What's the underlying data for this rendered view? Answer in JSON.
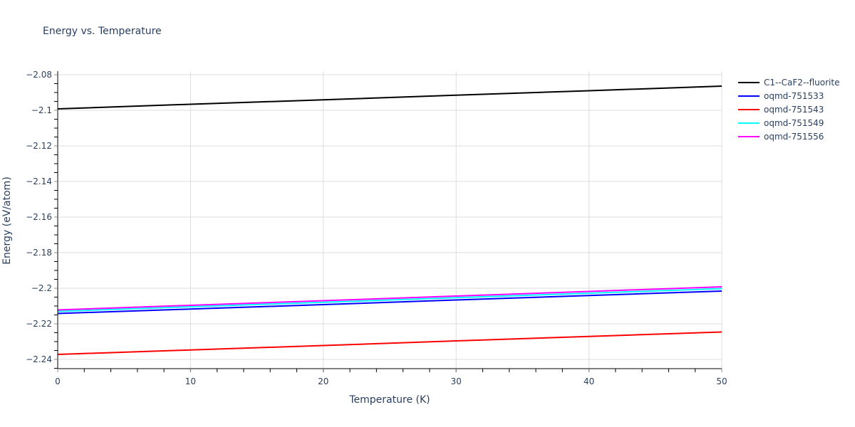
{
  "chart_data": {
    "type": "line",
    "title": "Energy vs. Temperature",
    "xlabel": "Temperature (K)",
    "ylabel": "Energy (eV/atom)",
    "xlim": [
      0,
      50
    ],
    "ylim": [
      -2.2452,
      -2.078
    ],
    "xticks": [
      0,
      10,
      20,
      30,
      40,
      50
    ],
    "xtick_labels": [
      "0",
      "10",
      "20",
      "30",
      "40",
      "50"
    ],
    "yticks": [
      -2.08,
      -2.1,
      -2.12,
      -2.14,
      -2.16,
      -2.18,
      -2.2,
      -2.22,
      -2.24
    ],
    "ytick_labels": [
      "−2.08",
      "−2.1",
      "−2.12",
      "−2.14",
      "−2.16",
      "−2.18",
      "−2.2",
      "−2.22",
      "−2.24"
    ],
    "x_minor_step": 2,
    "y_minor_step": 0.005,
    "grid": true,
    "legend_position": "right",
    "x": [
      0,
      10,
      20,
      30,
      40,
      50
    ],
    "series": [
      {
        "name": "C1--CaF2--fluorite",
        "color": "#000000",
        "values": [
          -2.0992,
          -2.0966,
          -2.0941,
          -2.0915,
          -2.089,
          -2.0864
        ]
      },
      {
        "name": "oqmd-751533",
        "color": "#0000ff",
        "values": [
          -2.2142,
          -2.2117,
          -2.2092,
          -2.2066,
          -2.2041,
          -2.2016
        ]
      },
      {
        "name": "oqmd-751543",
        "color": "#ff0000",
        "values": [
          -2.2372,
          -2.2347,
          -2.2322,
          -2.2296,
          -2.2271,
          -2.2246
        ]
      },
      {
        "name": "oqmd-751549",
        "color": "#00ffff",
        "values": [
          -2.213,
          -2.2104,
          -2.2079,
          -2.2053,
          -2.2028,
          -2.2002
        ]
      },
      {
        "name": "oqmd-751556",
        "color": "#ff00ff",
        "values": [
          -2.2122,
          -2.2096,
          -2.207,
          -2.2044,
          -2.2018,
          -2.1992
        ]
      }
    ]
  },
  "colors": {
    "text": "#2a3f5f",
    "grid": "#dddddd",
    "axis": "#000000"
  }
}
